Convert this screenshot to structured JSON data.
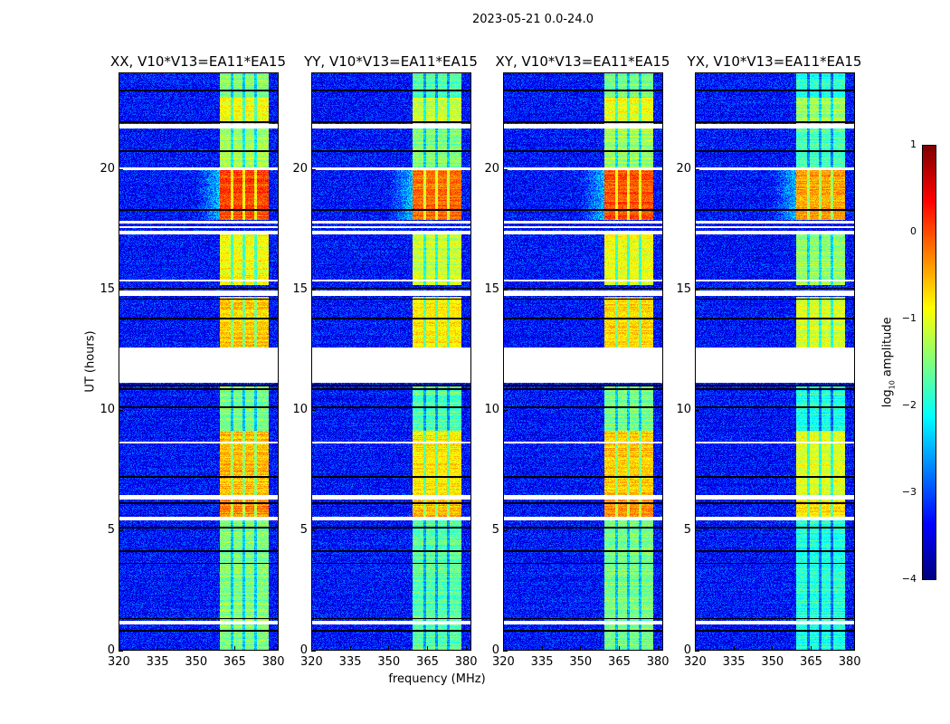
{
  "chart_data": {
    "type": "heatmap",
    "title": "2023-05-21 0.0-24.0",
    "xlabel": "frequency (MHz)",
    "ylabel": "UT (hours)",
    "xlim": [
      320,
      382.2
    ],
    "ylim": [
      0,
      24
    ],
    "xticks": [
      320,
      335,
      350,
      365,
      380
    ],
    "yticks": [
      0,
      5,
      10,
      15,
      20
    ],
    "colorbar": {
      "label_prefix": "log",
      "label_sub": "10",
      "label_suffix": " amplitude",
      "range": [
        -4,
        1
      ],
      "ticks": [
        1,
        0,
        -1,
        -2,
        -3,
        -4
      ],
      "colormap": "jet"
    },
    "panels": [
      {
        "title": "XX, V10*V13=EA11*EA15",
        "band_offset": 0.0
      },
      {
        "title": "YY, V10*V13=EA11*EA15",
        "band_offset": -0.2
      },
      {
        "title": "XY, V10*V13=EA11*EA15",
        "band_offset": -0.05
      },
      {
        "title": "YX, V10*V13=EA11*EA15",
        "band_offset": -0.45
      }
    ],
    "rfi_band_mhz": [
      359.5,
      378.5
    ],
    "band_notches_mhz": [
      364.3,
      369.0,
      373.6
    ],
    "background_log_amp": -3.3,
    "segments_hours": [
      {
        "from": 23.0,
        "to": 24.0,
        "band": -1.5
      },
      {
        "from": 21.9,
        "to": 23.0,
        "band": -0.9
      },
      {
        "from": 20.1,
        "to": 21.7,
        "band": -1.3
      },
      {
        "from": 17.9,
        "to": 19.95,
        "band": 0.05
      },
      {
        "from": 15.2,
        "to": 17.3,
        "band": -0.9
      },
      {
        "from": 12.6,
        "to": 14.7,
        "band": -0.6
      },
      {
        "from": 9.1,
        "to": 11.0,
        "band": -1.5
      },
      {
        "from": 6.45,
        "to": 9.1,
        "band": -0.55
      },
      {
        "from": 5.55,
        "to": 6.25,
        "band": -0.3
      },
      {
        "from": 0.0,
        "to": 5.4,
        "band": -1.5
      }
    ],
    "gaps_hours": [
      [
        21.7,
        21.9
      ],
      [
        19.95,
        20.1
      ],
      [
        17.3,
        17.45
      ],
      [
        17.55,
        17.65
      ],
      [
        17.75,
        17.85
      ],
      [
        14.75,
        14.95
      ],
      [
        11.1,
        12.6
      ],
      [
        6.25,
        6.45
      ],
      [
        5.4,
        5.55
      ],
      [
        1.05,
        1.2
      ],
      [
        15.35,
        15.4
      ],
      [
        8.6,
        8.65
      ]
    ],
    "flag_lines_hours": [
      23.3,
      21.95,
      20.75,
      18.3,
      15.05,
      14.6,
      13.8,
      11.0,
      10.85,
      10.1,
      7.2,
      6.1,
      5.1,
      4.1,
      3.6,
      1.3,
      0.8
    ]
  }
}
